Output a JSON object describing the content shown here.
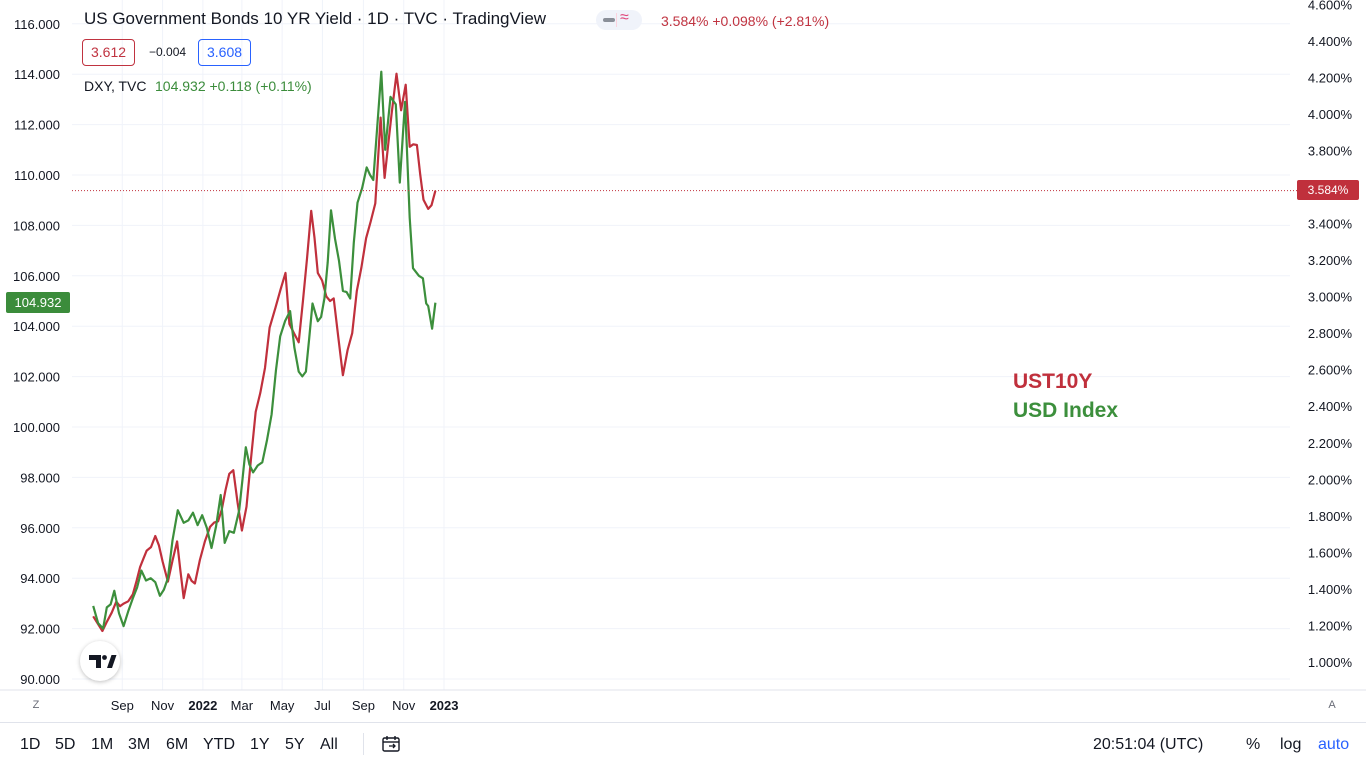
{
  "header": {
    "title": "US Government Bonds 10 YR Yield · 1D · TVC · TradingView",
    "last_change": "3.584%  +0.098% (+2.81%)",
    "bid": "3.612",
    "spread": "−0.004",
    "ask": "3.608"
  },
  "dxy": {
    "name": "DXY, TVC",
    "values": "104.932  +0.118 (+0.11%)"
  },
  "overlay_labels": {
    "line1": "UST10Y",
    "line2": "USD Index"
  },
  "badges": {
    "left": "104.932",
    "right": "3.584%"
  },
  "colors": {
    "ust10y": "#c0303c",
    "dxy": "#3c8f3c",
    "grid": "#f0f3fa"
  },
  "corner_left": "Z",
  "corner_right": "A",
  "timeframes": [
    "1D",
    "5D",
    "1M",
    "3M",
    "6M",
    "YTD",
    "1Y",
    "5Y",
    "All"
  ],
  "clock": "20:51:04 (UTC)",
  "controls": {
    "percent": "%",
    "log": "log",
    "auto": "auto"
  },
  "chart_data": {
    "type": "line",
    "x_tick_labels": [
      "Sep",
      "Nov",
      "2022",
      "Mar",
      "May",
      "Jul",
      "Sep",
      "Nov",
      "2023"
    ],
    "left_axis": {
      "label": "DXY",
      "ticks": [
        "116.000",
        "114.000",
        "112.000",
        "110.000",
        "108.000",
        "106.000",
        "104.000",
        "102.000",
        "100.000",
        "98.000",
        "96.000",
        "94.000",
        "92.000",
        "90.000"
      ],
      "ylim": [
        90,
        116
      ]
    },
    "right_axis": {
      "label": "UST10Y",
      "ticks": [
        "4.600%",
        "4.400%",
        "4.200%",
        "4.000%",
        "3.800%",
        "3.600%",
        "3.400%",
        "3.200%",
        "3.000%",
        "2.800%",
        "2.600%",
        "2.400%",
        "2.200%",
        "2.000%",
        "1.800%",
        "1.600%",
        "1.400%",
        "1.200%",
        "1.000%"
      ],
      "ylim": [
        0.92,
        4.6
      ]
    },
    "x_range": [
      "2021-07-19",
      "2023-02-01"
    ],
    "grid": true,
    "series": [
      {
        "name": "UST10Y",
        "axis": "right",
        "color": "#c0303c",
        "points": [
          [
            "2021-07-19",
            1.25
          ],
          [
            "2021-08-02",
            1.17
          ],
          [
            "2021-08-16",
            1.27
          ],
          [
            "2021-08-23",
            1.33
          ],
          [
            "2021-09-03",
            1.32
          ],
          [
            "2021-09-17",
            1.37
          ],
          [
            "2021-09-28",
            1.52
          ],
          [
            "2021-10-08",
            1.61
          ],
          [
            "2021-10-21",
            1.69
          ],
          [
            "2021-11-01",
            1.55
          ],
          [
            "2021-11-09",
            1.44
          ],
          [
            "2021-11-23",
            1.66
          ],
          [
            "2021-12-03",
            1.35
          ],
          [
            "2021-12-10",
            1.48
          ],
          [
            "2021-12-20",
            1.43
          ],
          [
            "2022-01-04",
            1.66
          ],
          [
            "2022-01-12",
            1.74
          ],
          [
            "2022-01-24",
            1.77
          ],
          [
            "2022-02-10",
            2.03
          ],
          [
            "2022-02-16",
            2.05
          ],
          [
            "2022-03-01",
            1.72
          ],
          [
            "2022-03-08",
            1.85
          ],
          [
            "2022-03-22",
            2.37
          ],
          [
            "2022-04-05",
            2.61
          ],
          [
            "2022-04-12",
            2.83
          ],
          [
            "2022-04-21",
            2.94
          ],
          [
            "2022-05-06",
            3.13
          ],
          [
            "2022-05-12",
            2.85
          ],
          [
            "2022-05-26",
            2.75
          ],
          [
            "2022-06-14",
            3.47
          ],
          [
            "2022-06-24",
            3.13
          ],
          [
            "2022-07-07",
            3.0
          ],
          [
            "2022-07-18",
            2.99
          ],
          [
            "2022-08-01",
            2.57
          ],
          [
            "2022-08-15",
            2.8
          ],
          [
            "2022-08-22",
            3.03
          ],
          [
            "2022-09-05",
            3.32
          ],
          [
            "2022-09-19",
            3.51
          ],
          [
            "2022-09-27",
            3.98
          ],
          [
            "2022-10-03",
            3.65
          ],
          [
            "2022-10-14",
            4.01
          ],
          [
            "2022-10-21",
            4.22
          ],
          [
            "2022-10-28",
            4.02
          ],
          [
            "2022-11-04",
            4.16
          ],
          [
            "2022-11-10",
            3.82
          ],
          [
            "2022-11-21",
            3.83
          ],
          [
            "2022-12-01",
            3.53
          ],
          [
            "2022-12-08",
            3.48
          ],
          [
            "2022-12-13",
            3.5
          ],
          [
            "2022-12-19",
            3.58
          ]
        ]
      },
      {
        "name": "USD Index",
        "axis": "left",
        "color": "#3c8f3c",
        "points": [
          [
            "2021-07-19",
            92.9
          ],
          [
            "2021-08-03",
            92.0
          ],
          [
            "2021-08-20",
            93.5
          ],
          [
            "2021-09-03",
            92.1
          ],
          [
            "2021-09-17",
            93.2
          ],
          [
            "2021-09-30",
            94.3
          ],
          [
            "2021-10-14",
            94.0
          ],
          [
            "2021-10-28",
            93.3
          ],
          [
            "2021-11-09",
            94.0
          ],
          [
            "2021-11-16",
            95.5
          ],
          [
            "2021-11-24",
            96.7
          ],
          [
            "2021-12-03",
            96.2
          ],
          [
            "2021-12-17",
            96.6
          ],
          [
            "2022-01-07",
            96.0
          ],
          [
            "2022-01-14",
            95.2
          ],
          [
            "2022-01-28",
            97.3
          ],
          [
            "2022-02-03",
            95.4
          ],
          [
            "2022-02-17",
            95.8
          ],
          [
            "2022-02-25",
            96.7
          ],
          [
            "2022-03-07",
            99.2
          ],
          [
            "2022-03-18",
            98.2
          ],
          [
            "2022-04-01",
            98.6
          ],
          [
            "2022-04-15",
            100.5
          ],
          [
            "2022-04-28",
            103.6
          ],
          [
            "2022-05-13",
            104.6
          ],
          [
            "2022-05-26",
            102.2
          ],
          [
            "2022-06-06",
            102.2
          ],
          [
            "2022-06-16",
            104.9
          ],
          [
            "2022-06-24",
            104.2
          ],
          [
            "2022-07-04",
            105.1
          ],
          [
            "2022-07-14",
            108.6
          ],
          [
            "2022-08-01",
            105.4
          ],
          [
            "2022-08-12",
            105.1
          ],
          [
            "2022-08-23",
            108.9
          ],
          [
            "2022-09-06",
            110.3
          ],
          [
            "2022-09-16",
            109.8
          ],
          [
            "2022-09-28",
            114.1
          ],
          [
            "2022-10-04",
            111.0
          ],
          [
            "2022-10-12",
            113.1
          ],
          [
            "2022-10-20",
            112.8
          ],
          [
            "2022-10-26",
            109.7
          ],
          [
            "2022-11-03",
            112.9
          ],
          [
            "2022-11-10",
            108.3
          ],
          [
            "2022-11-15",
            106.3
          ],
          [
            "2022-11-24",
            106.0
          ],
          [
            "2022-11-30",
            105.9
          ],
          [
            "2022-12-05",
            104.9
          ],
          [
            "2022-12-08",
            104.8
          ],
          [
            "2022-12-14",
            103.9
          ],
          [
            "2022-12-19",
            104.932
          ]
        ]
      }
    ]
  }
}
